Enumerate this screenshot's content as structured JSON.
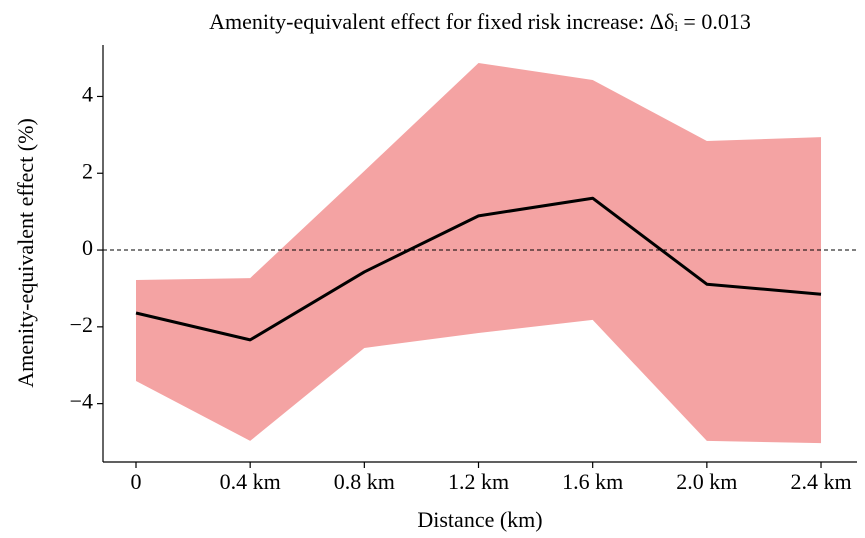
{
  "chart_data": {
    "type": "line",
    "title": "Amenity-equivalent effect for fixed risk increase: Δδᵢ = 0.013",
    "x_label": "Distance (km)",
    "y_label": "Amenity-equivalent effect (%)",
    "categories": [
      "0",
      "0.4 km",
      "0.8 km",
      "1.2 km",
      "1.6 km",
      "2.0 km",
      "2.4 km"
    ],
    "series": [
      {
        "color": "#000000",
        "values": [
          -1.64,
          -2.34,
          -0.57,
          0.89,
          1.35,
          -0.89,
          -1.15
        ]
      }
    ],
    "band": {
      "color": "#f4a3a3",
      "lower": [
        -3.41,
        -4.97,
        -2.55,
        -2.16,
        -1.82,
        -4.97,
        -5.03
      ],
      "upper": [
        -0.78,
        -0.73,
        2.06,
        4.87,
        4.43,
        2.84,
        2.94
      ]
    },
    "reference_line": 0,
    "ylim": [
      -5.52,
      5.34
    ],
    "yticks": [
      {
        "value": -4,
        "label": "−4"
      },
      {
        "value": -2,
        "label": "−2"
      },
      0,
      2,
      4
    ],
    "grid": false
  }
}
